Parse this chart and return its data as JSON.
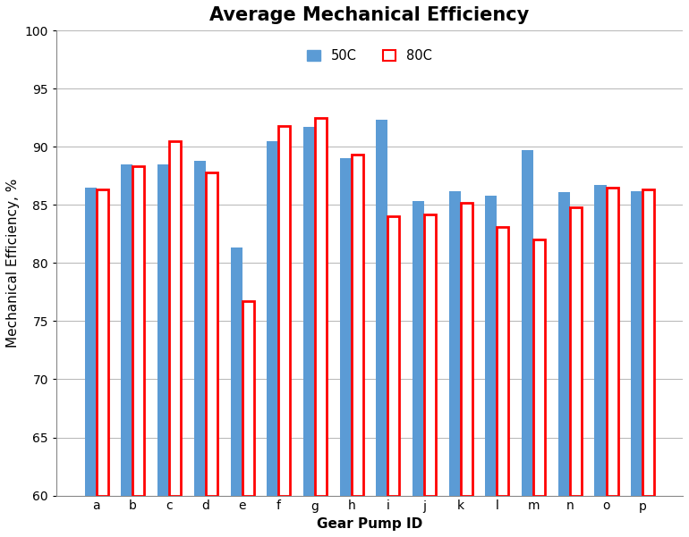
{
  "title": "Average Mechanical Efficiency",
  "xlabel": "Gear Pump ID",
  "ylabel": "Mechanical Efficiency, %",
  "categories": [
    "a",
    "b",
    "c",
    "d",
    "e",
    "f",
    "g",
    "h",
    "i",
    "j",
    "k",
    "l",
    "m",
    "n",
    "o",
    "p"
  ],
  "values_50C": [
    86.5,
    88.5,
    88.5,
    88.8,
    81.3,
    90.5,
    91.7,
    89.0,
    92.3,
    85.3,
    86.2,
    85.8,
    89.7,
    86.1,
    86.7,
    86.2
  ],
  "values_80C": [
    86.3,
    88.3,
    90.5,
    87.8,
    76.7,
    91.8,
    92.5,
    89.3,
    84.0,
    84.2,
    85.2,
    83.1,
    82.0,
    84.8,
    86.5,
    86.3
  ],
  "color_50C": "#5B9BD5",
  "color_80C": "#FF0000",
  "ylim": [
    60,
    100
  ],
  "yticks": [
    60,
    65,
    70,
    75,
    80,
    85,
    90,
    95,
    100
  ],
  "background_color": "#FFFFFF",
  "legend_50C": "50C",
  "legend_80C": "80C",
  "title_fontsize": 15,
  "label_fontsize": 11,
  "tick_fontsize": 10
}
